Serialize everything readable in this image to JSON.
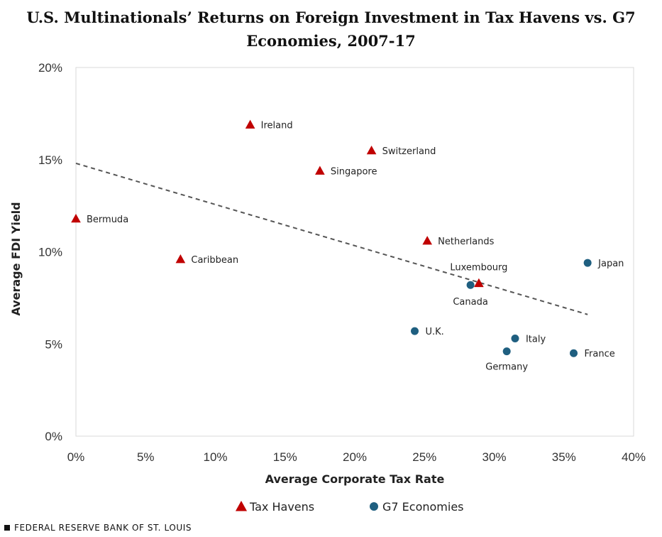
{
  "colors": {
    "tax_havens": "#c00000",
    "g7": "#1f5f80",
    "trend": "#555555",
    "grid": "#d9d9d9"
  },
  "footer": {
    "text": "FEDERAL RESERVE BANK OF ST. LOUIS"
  },
  "chart_data": {
    "type": "scatter",
    "title_lines": [
      "U.S. Multinationals’ Returns on Foreign Investment in Tax Havens vs. G7",
      "Economies, 2007-17"
    ],
    "xlabel": "Average Corporate  Tax Rate",
    "ylabel": "Average FDI Yield",
    "xlim": [
      0,
      40
    ],
    "ylim": [
      0,
      20
    ],
    "x_ticks": [
      0,
      5,
      10,
      15,
      20,
      25,
      30,
      35,
      40
    ],
    "x_tick_labels": [
      "0%",
      "5%",
      "10%",
      "15%",
      "20%",
      "25%",
      "30%",
      "35%",
      "40%"
    ],
    "y_ticks": [
      0,
      5,
      10,
      15,
      20
    ],
    "y_tick_labels": [
      "0%",
      "5%",
      "10%",
      "15%",
      "20%"
    ],
    "grid": false,
    "legend_position": "bottom",
    "series": [
      {
        "name": "Tax Havens",
        "marker": "triangle",
        "points": [
          {
            "label": "Ireland",
            "x": 12.5,
            "y": 16.9
          },
          {
            "label": "Switzerland",
            "x": 21.2,
            "y": 15.5
          },
          {
            "label": "Singapore",
            "x": 17.5,
            "y": 14.4
          },
          {
            "label": "Bermuda",
            "x": 0.0,
            "y": 11.8
          },
          {
            "label": "Netherlands",
            "x": 25.2,
            "y": 10.6
          },
          {
            "label": "Caribbean",
            "x": 7.5,
            "y": 9.6
          },
          {
            "label": "Luxembourg",
            "x": 28.9,
            "y": 8.3
          }
        ]
      },
      {
        "name": "G7 Economies",
        "marker": "circle",
        "points": [
          {
            "label": "Japan",
            "x": 36.7,
            "y": 9.4
          },
          {
            "label": "Canada",
            "x": 28.3,
            "y": 8.2
          },
          {
            "label": "U.K.",
            "x": 24.3,
            "y": 5.7
          },
          {
            "label": "Italy",
            "x": 31.5,
            "y": 5.3
          },
          {
            "label": "Germany",
            "x": 30.9,
            "y": 4.6
          },
          {
            "label": "France",
            "x": 35.7,
            "y": 4.5
          }
        ]
      }
    ],
    "trendline": {
      "style": "dashed",
      "from": {
        "x": 0,
        "y": 14.8
      },
      "to": {
        "x": 36.7,
        "y": 6.6
      }
    }
  }
}
